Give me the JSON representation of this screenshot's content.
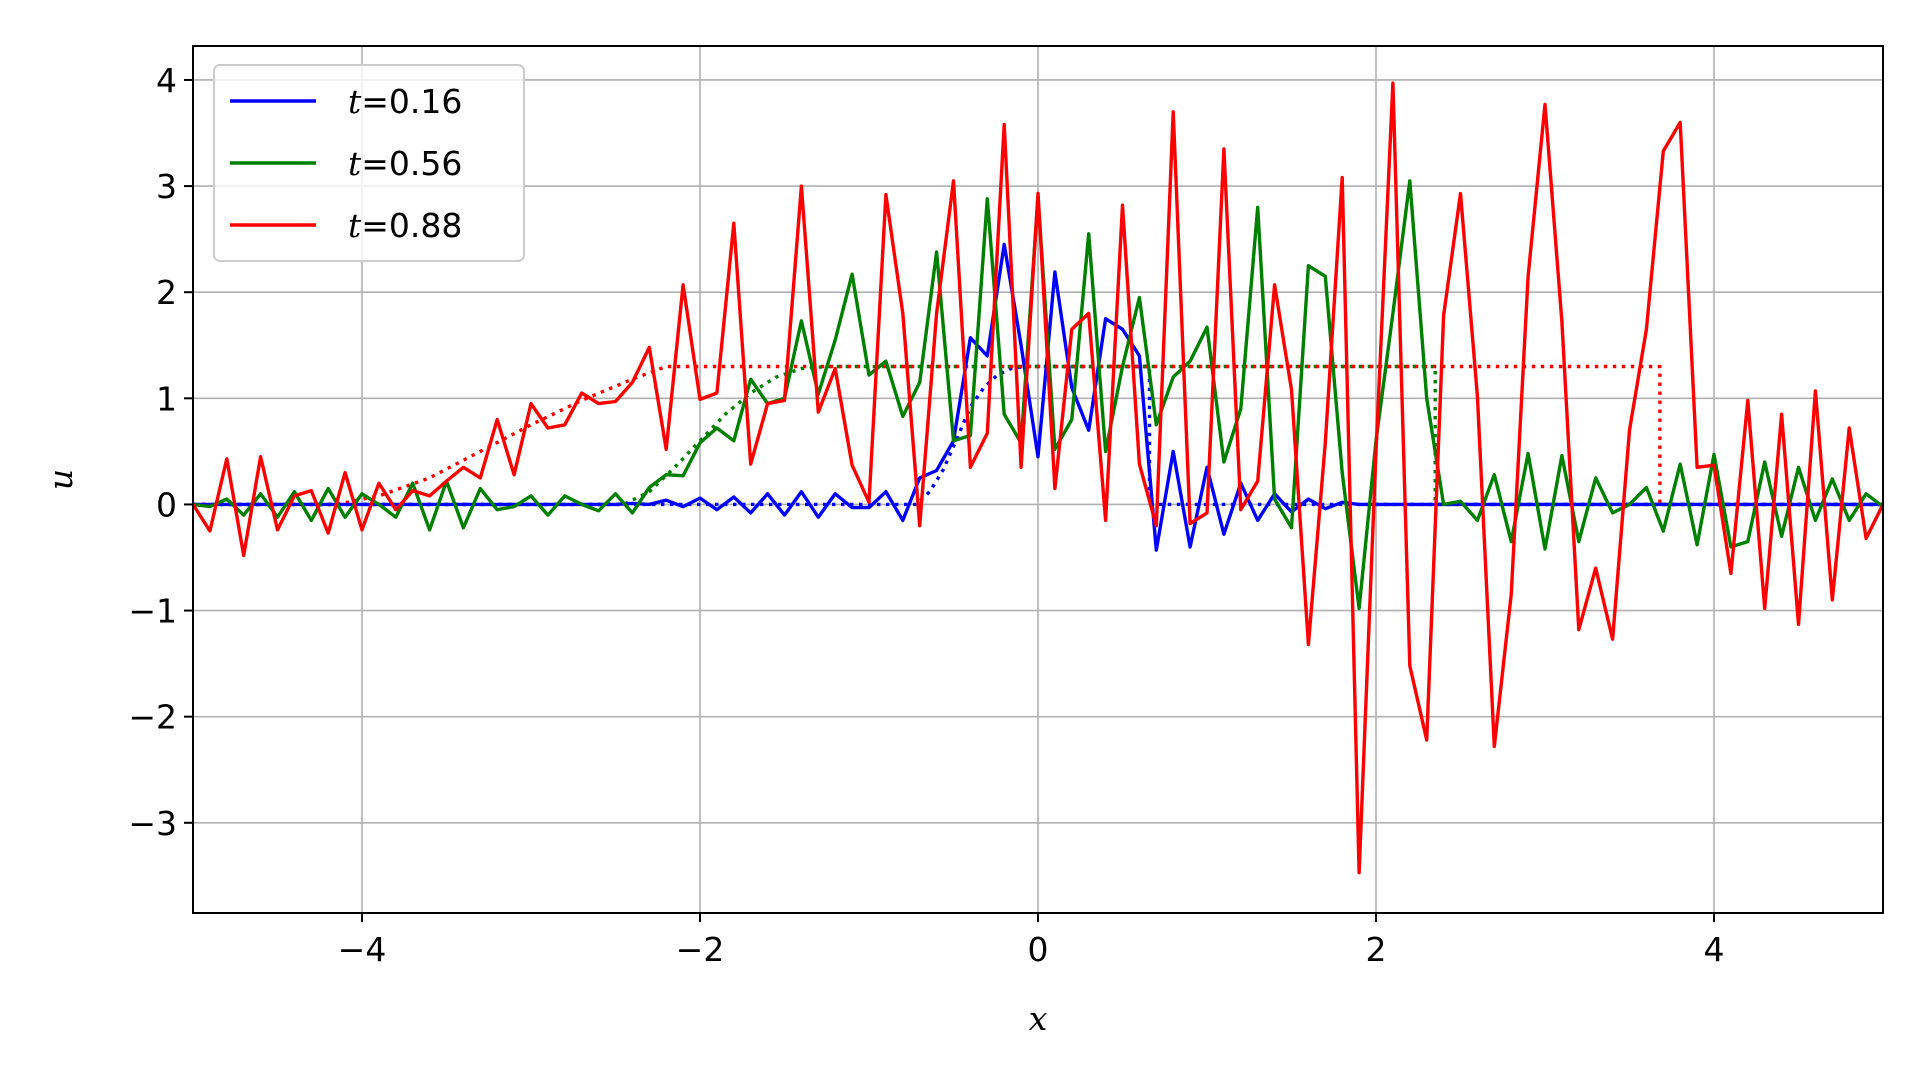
{
  "chart_data": {
    "type": "line",
    "xlabel": "x",
    "ylabel": "u",
    "xlim": [
      -5,
      5
    ],
    "ylim": [
      -3.85,
      4.32
    ],
    "xticks": [
      -4,
      -2,
      0,
      2,
      4
    ],
    "yticks": [
      -3,
      -2,
      -1,
      0,
      1,
      2,
      3,
      4
    ],
    "xtick_labels": [
      "−4",
      "−2",
      "0",
      "2",
      "4"
    ],
    "ytick_labels": [
      "−3",
      "−2",
      "−1",
      "0",
      "1",
      "2",
      "3",
      "4"
    ],
    "grid": true,
    "legend_position": "upper-left",
    "series": [
      {
        "name": "t = 0.16",
        "legend_var": "t",
        "legend_value": "0.16",
        "color": "#0000ff",
        "style": "solid",
        "x": [
          -5.0,
          -4.9,
          -4.8,
          -4.7,
          -4.6,
          -4.5,
          -4.4,
          -4.3,
          -4.2,
          -4.1,
          -4.0,
          -3.9,
          -3.8,
          -3.7,
          -3.6,
          -3.5,
          -3.4,
          -3.3,
          -3.2,
          -3.1,
          -3.0,
          -2.9,
          -2.8,
          -2.7,
          -2.6,
          -2.5,
          -2.4,
          -2.3,
          -2.2,
          -2.1,
          -2.0,
          -1.9,
          -1.8,
          -1.7,
          -1.6,
          -1.5,
          -1.4,
          -1.3,
          -1.2,
          -1.1,
          -1.0,
          -0.9,
          -0.8,
          -0.7,
          -0.6,
          -0.5,
          -0.4,
          -0.3,
          -0.2,
          -0.1,
          0.0,
          0.1,
          0.2,
          0.3,
          0.4,
          0.5,
          0.6,
          0.7,
          0.8,
          0.9,
          1.0,
          1.1,
          1.2,
          1.3,
          1.4,
          1.5,
          1.6,
          1.7,
          1.8,
          1.9,
          2.0,
          2.2,
          2.4,
          2.6,
          2.8,
          3.0,
          3.2,
          3.4,
          3.6,
          3.8,
          4.0,
          4.2,
          4.4,
          4.6,
          4.8,
          5.0
        ],
        "y": [
          0,
          0,
          0,
          0,
          0,
          0,
          0,
          0,
          0,
          0,
          0,
          0,
          0,
          0,
          0,
          0,
          0,
          0,
          0,
          0,
          0,
          0,
          0,
          0,
          0,
          0,
          0.01,
          0.0,
          0.04,
          -0.02,
          0.06,
          -0.05,
          0.07,
          -0.08,
          0.1,
          -0.1,
          0.12,
          -0.12,
          0.1,
          -0.03,
          -0.03,
          0.12,
          -0.15,
          0.25,
          0.32,
          0.6,
          1.57,
          1.4,
          2.45,
          1.5,
          0.45,
          2.19,
          1.1,
          0.7,
          1.75,
          1.65,
          1.4,
          -0.43,
          0.5,
          -0.4,
          0.35,
          -0.28,
          0.2,
          -0.15,
          0.1,
          -0.07,
          0.05,
          -0.04,
          0.02,
          0.0,
          0.0,
          0.0,
          0.0,
          0.0,
          0.0,
          0.0,
          0.0,
          0.0,
          0.0,
          0.0,
          0.0,
          0.0,
          0.0,
          0.0,
          0.0,
          0.0
        ]
      },
      {
        "name": "t = 0.56",
        "legend_var": "t",
        "legend_value": "0.56",
        "color": "#008000",
        "style": "solid",
        "x": [
          -5.0,
          -4.9,
          -4.8,
          -4.7,
          -4.6,
          -4.5,
          -4.4,
          -4.3,
          -4.2,
          -4.1,
          -4.0,
          -3.9,
          -3.8,
          -3.7,
          -3.6,
          -3.5,
          -3.4,
          -3.3,
          -3.2,
          -3.1,
          -3.0,
          -2.9,
          -2.8,
          -2.7,
          -2.6,
          -2.5,
          -2.4,
          -2.3,
          -2.2,
          -2.1,
          -2.0,
          -1.9,
          -1.8,
          -1.7,
          -1.6,
          -1.5,
          -1.4,
          -1.3,
          -1.2,
          -1.1,
          -1.0,
          -0.9,
          -0.8,
          -0.7,
          -0.6,
          -0.5,
          -0.4,
          -0.3,
          -0.2,
          -0.1,
          0.0,
          0.1,
          0.2,
          0.3,
          0.4,
          0.5,
          0.6,
          0.7,
          0.8,
          0.9,
          1.0,
          1.1,
          1.2,
          1.3,
          1.4,
          1.5,
          1.6,
          1.7,
          1.8,
          1.9,
          2.0,
          2.1,
          2.2,
          2.3,
          2.4,
          2.5,
          2.6,
          2.7,
          2.8,
          2.9,
          3.0,
          3.1,
          3.2,
          3.3,
          3.4,
          3.5,
          3.6,
          3.7,
          3.8,
          3.9,
          4.0,
          4.1,
          4.2,
          4.3,
          4.4,
          4.5,
          4.6,
          4.7,
          4.8,
          4.9,
          5.0
        ],
        "y": [
          0.0,
          -0.02,
          0.05,
          -0.1,
          0.1,
          -0.12,
          0.12,
          -0.15,
          0.15,
          -0.12,
          0.1,
          0.0,
          -0.12,
          0.2,
          -0.24,
          0.22,
          -0.22,
          0.15,
          -0.05,
          -0.02,
          0.08,
          -0.1,
          0.08,
          0.0,
          -0.06,
          0.1,
          -0.08,
          0.16,
          0.28,
          0.27,
          0.58,
          0.72,
          0.6,
          1.18,
          0.95,
          1.0,
          1.73,
          1.04,
          1.55,
          2.17,
          1.22,
          1.35,
          0.83,
          1.15,
          2.38,
          0.6,
          0.65,
          2.88,
          0.85,
          0.58,
          2.9,
          0.52,
          0.8,
          2.55,
          0.5,
          1.3,
          1.95,
          0.75,
          1.2,
          1.35,
          1.67,
          0.4,
          0.9,
          2.8,
          0.05,
          -0.22,
          2.25,
          2.15,
          0.3,
          -0.98,
          0.6,
          1.8,
          3.05,
          1.0,
          0.0,
          0.03,
          -0.15,
          0.28,
          -0.35,
          0.48,
          -0.42,
          0.46,
          -0.35,
          0.25,
          -0.08,
          0.0,
          0.16,
          -0.25,
          0.38,
          -0.38,
          0.47,
          -0.4,
          -0.35,
          0.4,
          -0.3,
          0.35,
          -0.15,
          0.24,
          -0.15,
          0.1,
          -0.02
        ]
      },
      {
        "name": "t = 0.88",
        "legend_var": "t",
        "legend_value": "0.88",
        "color": "#ff0000",
        "style": "solid",
        "x": [
          -5.0,
          -4.9,
          -4.8,
          -4.7,
          -4.6,
          -4.5,
          -4.4,
          -4.3,
          -4.2,
          -4.1,
          -4.0,
          -3.9,
          -3.8,
          -3.7,
          -3.6,
          -3.5,
          -3.4,
          -3.3,
          -3.2,
          -3.1,
          -3.0,
          -2.9,
          -2.8,
          -2.7,
          -2.6,
          -2.5,
          -2.4,
          -2.3,
          -2.2,
          -2.1,
          -2.0,
          -1.9,
          -1.8,
          -1.7,
          -1.6,
          -1.5,
          -1.4,
          -1.3,
          -1.2,
          -1.1,
          -1.0,
          -0.9,
          -0.8,
          -0.7,
          -0.6,
          -0.5,
          -0.4,
          -0.3,
          -0.2,
          -0.1,
          0.0,
          0.1,
          0.2,
          0.3,
          0.4,
          0.5,
          0.6,
          0.7,
          0.8,
          0.9,
          1.0,
          1.1,
          1.2,
          1.3,
          1.4,
          1.5,
          1.6,
          1.7,
          1.8,
          1.9,
          2.0,
          2.1,
          2.2,
          2.3,
          2.4,
          2.5,
          2.6,
          2.7,
          2.8,
          2.9,
          3.0,
          3.1,
          3.2,
          3.3,
          3.4,
          3.5,
          3.6,
          3.7,
          3.8,
          3.9,
          4.0,
          4.1,
          4.2,
          4.3,
          4.4,
          4.5,
          4.6,
          4.7,
          4.8,
          4.9,
          5.0
        ],
        "y": [
          0.0,
          -0.25,
          0.43,
          -0.48,
          0.45,
          -0.24,
          0.08,
          0.13,
          -0.27,
          0.3,
          -0.24,
          0.2,
          -0.05,
          0.13,
          0.08,
          0.22,
          0.35,
          0.25,
          0.8,
          0.28,
          0.95,
          0.72,
          0.75,
          1.05,
          0.95,
          0.97,
          1.15,
          1.48,
          0.52,
          2.07,
          0.99,
          1.05,
          2.65,
          0.38,
          0.95,
          0.98,
          3.0,
          0.87,
          1.28,
          0.37,
          0.02,
          2.92,
          1.8,
          -0.2,
          1.8,
          3.05,
          0.35,
          0.67,
          3.58,
          0.35,
          2.93,
          0.15,
          1.65,
          1.8,
          -0.15,
          2.82,
          0.38,
          -0.2,
          3.7,
          -0.18,
          -0.08,
          3.35,
          -0.05,
          0.22,
          2.07,
          1.08,
          -1.32,
          0.58,
          3.08,
          -3.47,
          0.5,
          3.97,
          -1.52,
          -2.22,
          1.78,
          2.93,
          1.02,
          -2.28,
          -0.85,
          2.15,
          3.77,
          1.72,
          -1.18,
          -0.6,
          -1.27,
          0.7,
          1.65,
          3.33,
          3.6,
          0.35,
          0.37,
          -0.65,
          0.98,
          -0.98,
          0.85,
          -1.13,
          1.07,
          -0.9,
          0.72,
          -0.32,
          0.0
        ]
      },
      {
        "name": "",
        "color": "#0000ff",
        "style": "dotted",
        "x": [
          -5.0,
          -0.8,
          -0.72,
          -0.64,
          -0.56,
          -0.48,
          -0.4,
          -0.32,
          -0.24,
          -0.16,
          -0.08,
          0.0,
          0.1,
          0.2,
          0.3,
          0.4,
          0.5,
          0.6,
          0.66,
          0.66,
          5.0
        ],
        "y": [
          0.0,
          0.0,
          0.0,
          0.12,
          0.33,
          0.62,
          0.92,
          1.1,
          1.22,
          1.28,
          1.3,
          1.3,
          1.3,
          1.3,
          1.3,
          1.3,
          1.3,
          1.3,
          1.3,
          0.0,
          0.0
        ]
      },
      {
        "name": "",
        "color": "#008000",
        "style": "dotted",
        "x": [
          -5.0,
          -2.45,
          -2.3,
          -2.15,
          -2.0,
          -1.85,
          -1.7,
          -1.55,
          -1.4,
          -1.25,
          -1.1,
          -0.9,
          -0.5,
          0.0,
          0.5,
          1.0,
          1.5,
          2.0,
          2.35,
          2.35,
          5.0
        ],
        "y": [
          0.0,
          0.0,
          0.12,
          0.35,
          0.6,
          0.85,
          1.05,
          1.2,
          1.28,
          1.3,
          1.3,
          1.3,
          1.3,
          1.3,
          1.3,
          1.3,
          1.3,
          1.3,
          1.3,
          0.0,
          0.0
        ]
      },
      {
        "name": "",
        "color": "#ff0000",
        "style": "dotted",
        "x": [
          -5.0,
          -4.15,
          -3.9,
          -3.6,
          -3.3,
          -3.0,
          -2.7,
          -2.4,
          -2.2,
          -2.0,
          -1.5,
          -1.0,
          0.0,
          1.0,
          2.0,
          3.0,
          3.68,
          3.68,
          5.0
        ],
        "y": [
          0.0,
          0.0,
          0.08,
          0.25,
          0.5,
          0.75,
          0.98,
          1.18,
          1.3,
          1.3,
          1.3,
          1.3,
          1.3,
          1.3,
          1.3,
          1.3,
          1.3,
          0.0,
          0.0
        ]
      }
    ]
  }
}
